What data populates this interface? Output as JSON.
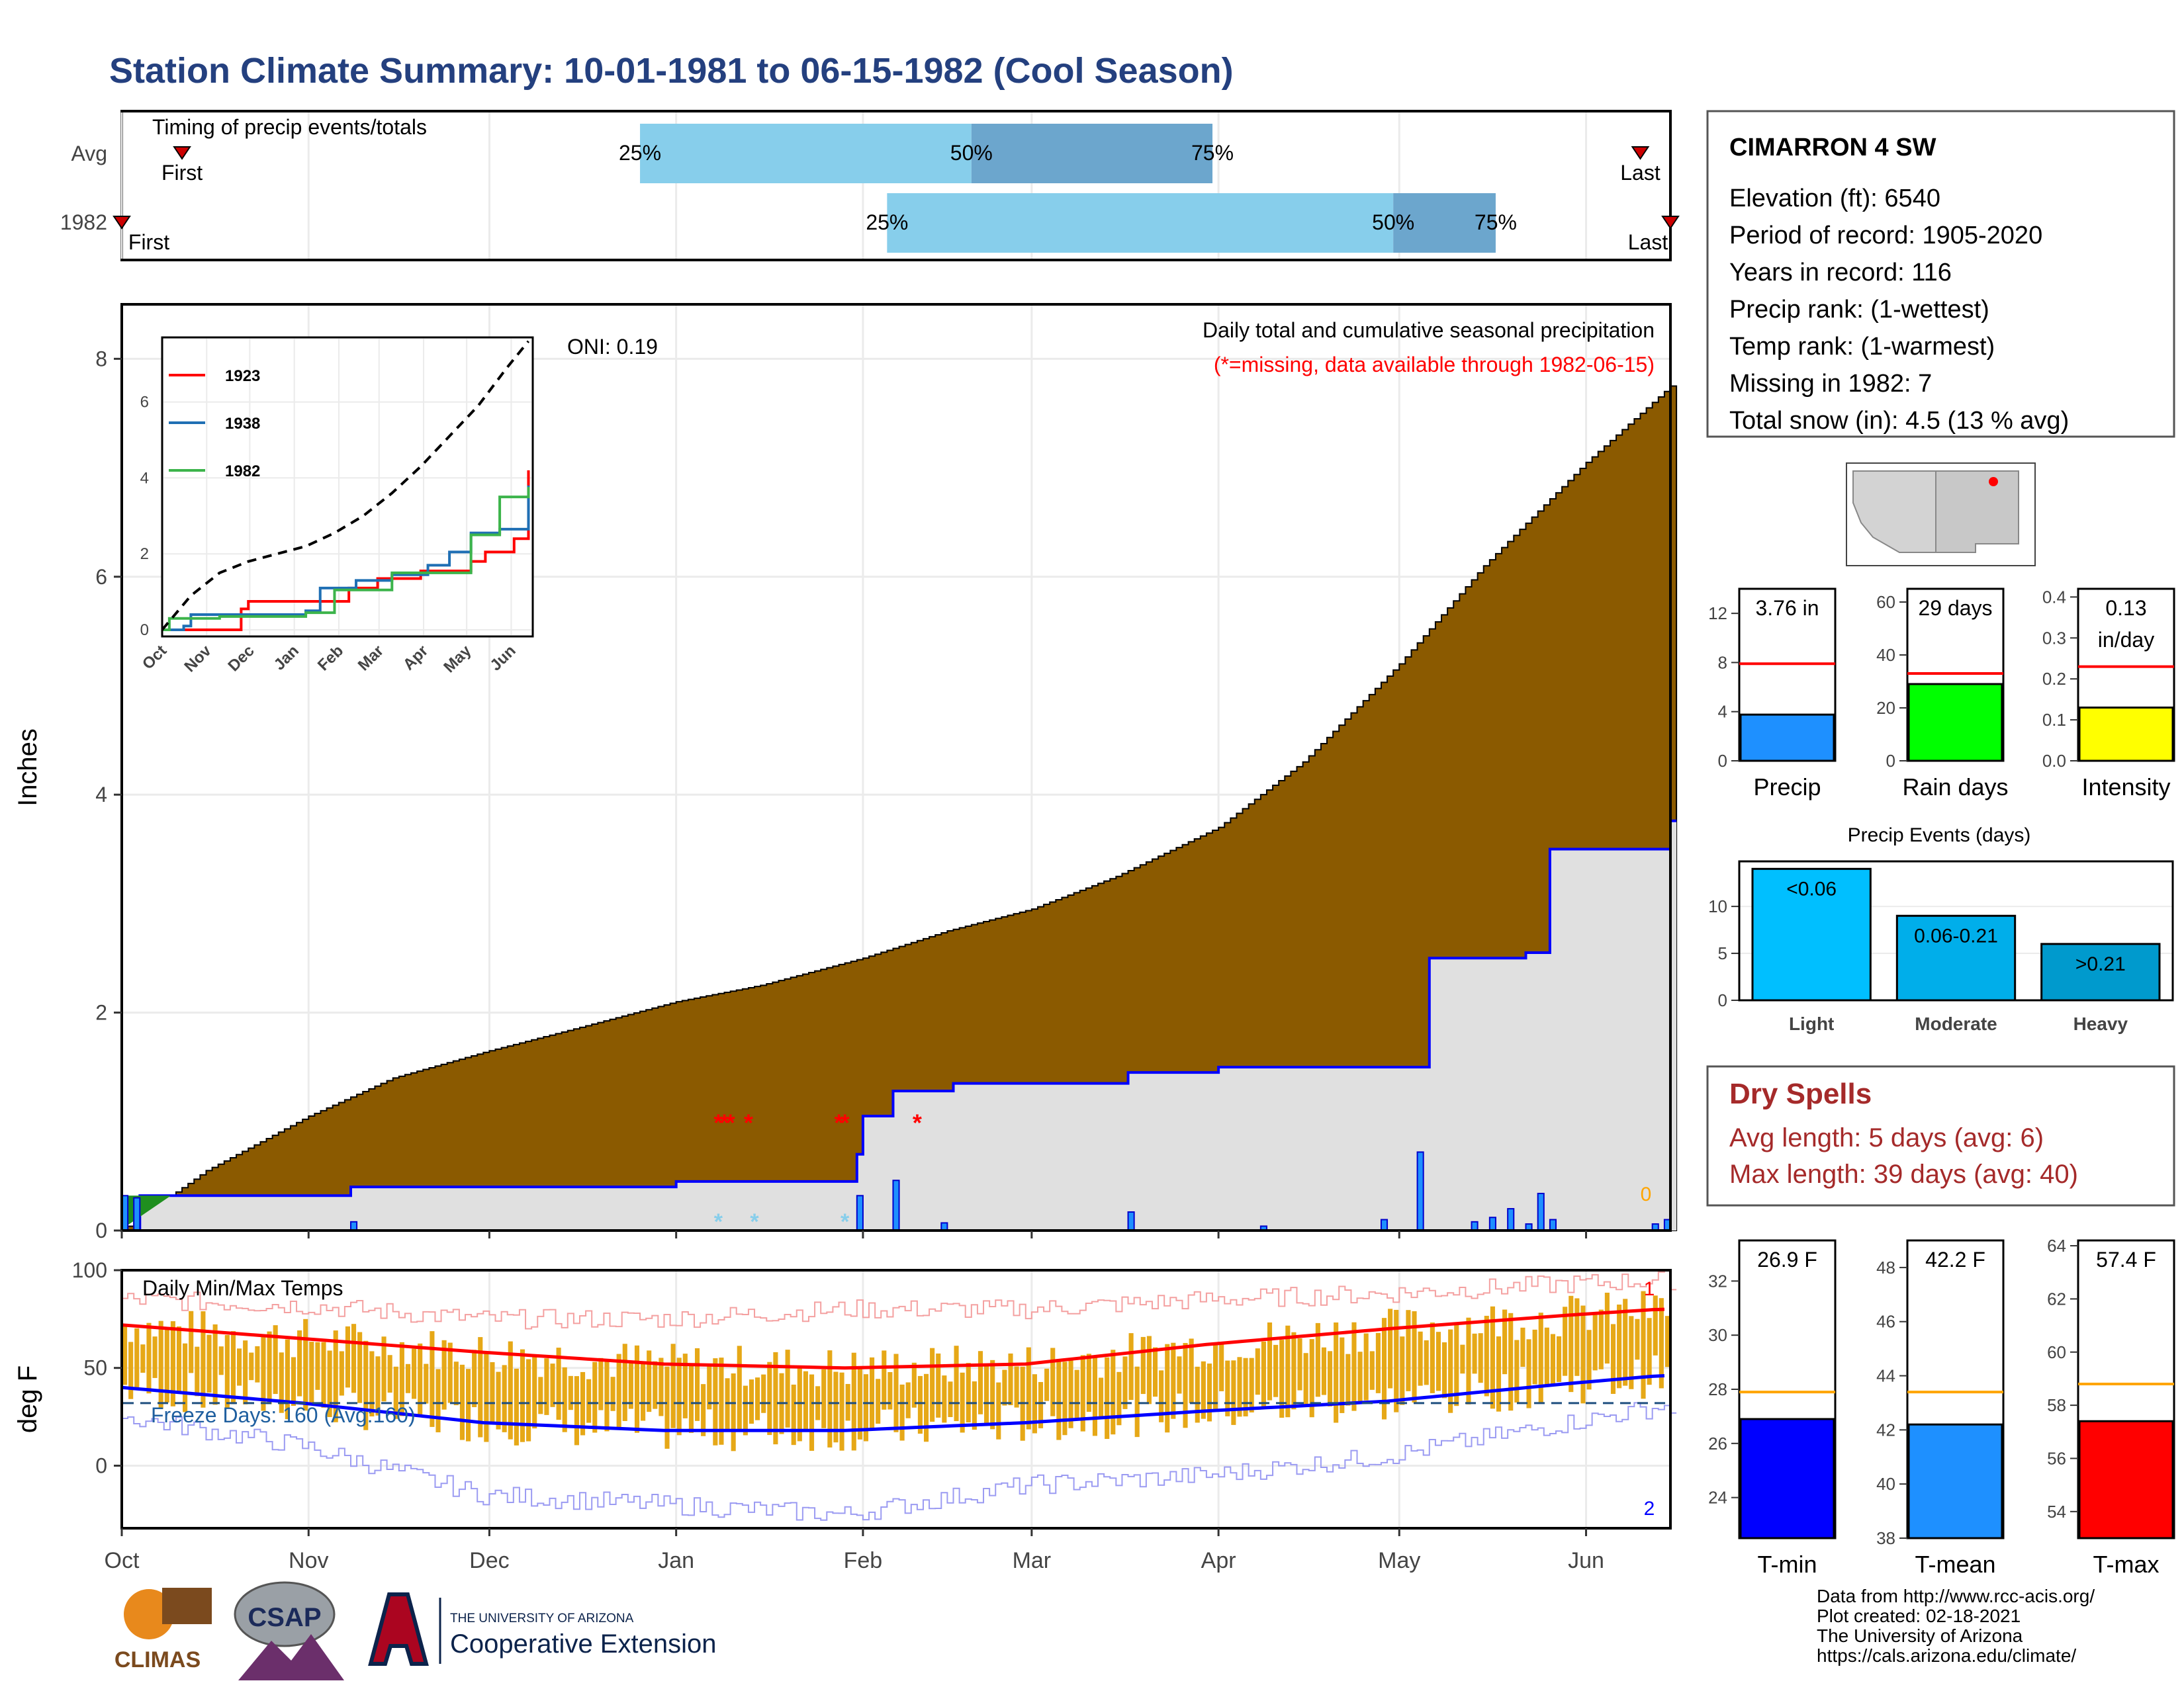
{
  "title": "Station Climate Summary: 10-01-1981 to 06-15-1982 (Cool Season)",
  "colors": {
    "title": "#24407f",
    "brown": "#8b5a00",
    "gray_fill": "#e0e0e0",
    "blue_line": "#0000ff",
    "timing_light": "#87ceeb",
    "timing_dark": "#6ca6cd",
    "red": "#ff0000",
    "orange": "#e6a817",
    "dry_red": "#a52a2a"
  },
  "timing": {
    "title": "Timing of precip events/totals",
    "rows": [
      {
        "label": "Avg",
        "first_label": "First",
        "last_label": "Last",
        "p25_label": "25%",
        "p50_label": "50%",
        "p75_label": "75%",
        "first_date": "1981-10-11",
        "p25_date": "1981-12-26",
        "p50_date": "1982-02-19",
        "p75_date": "1982-03-31",
        "last_date": "1982-06-10"
      },
      {
        "label": "1982",
        "first_label": "First",
        "last_label": "Last",
        "p25_label": "25%",
        "p50_label": "50%",
        "p75_label": "75%",
        "first_date": "1981-10-01",
        "p25_date": "1982-02-05",
        "p50_date": "1982-04-30",
        "p75_date": "1982-05-17",
        "last_date": "1982-06-15"
      }
    ]
  },
  "precip": {
    "ylabel": "Inches",
    "oni_label": "ONI: 0.19",
    "caption1": "Daily total and cumulative seasonal precipitation",
    "caption2": "(*=missing, data available through 1982-06-15)",
    "zero_label": "0",
    "y_ticks": [
      "0",
      "2",
      "4",
      "6",
      "8"
    ]
  },
  "chart_data": [
    {
      "type": "area",
      "name": "cumulative-precip",
      "x_range": [
        "1981-10-01",
        "1982-06-15"
      ],
      "ylim": [
        0,
        8.5
      ],
      "y_ticks": [
        0,
        2,
        4,
        6,
        8
      ],
      "x_ticks": [
        "Oct",
        "Nov",
        "Dec",
        "Jan",
        "Feb",
        "Mar",
        "Apr",
        "May",
        "Jun"
      ],
      "average_cumulative": {
        "x": [
          "1981-10-01",
          "1981-10-15",
          "1981-11-01",
          "1981-11-15",
          "1981-12-01",
          "1981-12-15",
          "1982-01-01",
          "1982-01-15",
          "1982-02-01",
          "1982-02-15",
          "1982-03-01",
          "1982-03-15",
          "1982-04-01",
          "1982-04-15",
          "1982-05-01",
          "1982-05-15",
          "1982-06-01",
          "1982-06-15"
        ],
        "y": [
          0.0,
          0.55,
          1.05,
          1.4,
          1.65,
          1.85,
          2.1,
          2.25,
          2.5,
          2.75,
          2.95,
          3.25,
          3.7,
          4.3,
          5.2,
          6.1,
          7.05,
          7.75
        ]
      },
      "observed_cumulative": {
        "x": [
          "1981-10-01",
          "1981-10-04",
          "1981-11-08",
          "1982-01-01",
          "1982-01-31",
          "1982-02-01",
          "1982-02-06",
          "1982-02-16",
          "1982-03-17",
          "1982-04-01",
          "1982-05-01",
          "1982-05-06",
          "1982-05-22",
          "1982-05-26",
          "1982-06-15"
        ],
        "y": [
          0.0,
          0.32,
          0.4,
          0.45,
          0.7,
          1.05,
          1.28,
          1.35,
          1.45,
          1.5,
          1.5,
          2.5,
          2.55,
          3.5,
          3.76
        ]
      },
      "daily_precip": {
        "x": [
          "1981-10-01",
          "1981-10-03",
          "1981-11-08",
          "1982-01-31",
          "1982-02-06",
          "1982-02-14",
          "1982-03-17",
          "1982-04-08",
          "1982-04-28",
          "1982-05-04",
          "1982-05-13",
          "1982-05-16",
          "1982-05-19",
          "1982-05-22",
          "1982-05-24",
          "1982-05-26",
          "1982-06-12",
          "1982-06-14"
        ],
        "y": [
          0.32,
          0.3,
          0.08,
          0.32,
          0.46,
          0.07,
          0.17,
          0.04,
          0.1,
          0.72,
          0.08,
          0.12,
          0.2,
          0.06,
          0.34,
          0.1,
          0.06,
          0.1
        ]
      },
      "missing_precip": [
        "1982-01-08",
        "1982-01-09",
        "1982-01-10",
        "1982-01-13",
        "1982-01-28",
        "1982-01-29",
        "1982-02-10"
      ],
      "missing_snow": [
        "1982-01-08",
        "1982-01-14",
        "1982-01-29"
      ]
    },
    {
      "type": "line",
      "name": "cumulative-inset",
      "x_ticks": [
        "Oct",
        "Nov",
        "Dec",
        "Jan",
        "Feb",
        "Mar",
        "Apr",
        "May",
        "Jun"
      ],
      "y_ticks": [
        0,
        2,
        4,
        6
      ],
      "ylim": [
        0,
        7.7
      ],
      "series": [
        {
          "name": "1923",
          "color": "#ff0000",
          "x": [
            0,
            20,
            55,
            60,
            100,
            130,
            150,
            180,
            215,
            225,
            245,
            255
          ],
          "y": [
            0,
            0,
            0.55,
            0.75,
            0.75,
            1.1,
            1.35,
            1.55,
            1.8,
            2.05,
            2.4,
            4.2
          ]
        },
        {
          "name": "1938",
          "color": "#1f6fb4",
          "x": [
            0,
            15,
            20,
            100,
            110,
            135,
            160,
            185,
            200,
            215,
            235,
            255
          ],
          "y": [
            0,
            0.1,
            0.4,
            0.5,
            1.1,
            1.3,
            1.45,
            1.7,
            2.05,
            2.55,
            2.65,
            3.8
          ]
        },
        {
          "name": "1982",
          "color": "#3cb44b",
          "x": [
            0,
            5,
            40,
            100,
            120,
            160,
            195,
            215,
            235,
            255
          ],
          "y": [
            0,
            0.3,
            0.35,
            0.45,
            1.05,
            1.5,
            1.5,
            2.5,
            3.5,
            3.76
          ]
        }
      ],
      "average": {
        "name": "avg",
        "x": [
          0,
          20,
          40,
          60,
          80,
          100,
          120,
          140,
          160,
          180,
          200,
          220,
          240,
          255
        ],
        "y": [
          0,
          0.9,
          1.5,
          1.8,
          2.0,
          2.2,
          2.55,
          3.0,
          3.6,
          4.3,
          5.1,
          5.9,
          6.9,
          7.6
        ]
      }
    },
    {
      "type": "bar",
      "name": "daily-temps",
      "ylabel": "deg F",
      "title": "Daily Min/Max Temps",
      "ylim": [
        -32,
        100
      ],
      "y_ticks": [
        0,
        50,
        100
      ],
      "freeze_line": 32,
      "freeze_label": "Freeze Days: 160 (Avg:160)",
      "record_high_count": "1",
      "record_low_count": "2",
      "avg_max": {
        "x": [
          0,
          30,
          60,
          90,
          120,
          150,
          180,
          210,
          240,
          255
        ],
        "y": [
          72,
          65,
          58,
          52,
          50,
          52,
          62,
          70,
          77,
          80
        ]
      },
      "avg_min": {
        "x": [
          0,
          30,
          60,
          90,
          120,
          150,
          180,
          210,
          240,
          255
        ],
        "y": [
          40,
          32,
          22,
          18,
          18,
          22,
          28,
          33,
          42,
          46
        ]
      },
      "record_max": {
        "x": [
          0,
          30,
          60,
          90,
          120,
          150,
          180,
          210,
          240,
          255
        ],
        "y": [
          85,
          82,
          75,
          75,
          80,
          80,
          85,
          88,
          93,
          95
        ]
      },
      "record_min": {
        "x": [
          0,
          30,
          60,
          90,
          120,
          150,
          180,
          210,
          240,
          255
        ],
        "y": [
          25,
          10,
          -15,
          -20,
          -25,
          -10,
          -5,
          5,
          22,
          30
        ]
      }
    }
  ],
  "info": {
    "station": "CIMARRON 4 SW",
    "lines": [
      "Elevation (ft): 6540",
      "Period of record: 1905-2020",
      "Years in record: 116",
      "Precip rank:  (1-wettest)",
      "Temp rank:  (1-warmest)",
      "Missing in 1982: 7",
      "Total snow (in): 4.5 (13 % avg)"
    ]
  },
  "mini_charts": {
    "precip": {
      "label": "Precip",
      "value_label": "3.76 in",
      "value": 3.76,
      "avg": 7.9,
      "ylim": [
        0,
        14
      ],
      "ticks": [
        "0",
        "4",
        "8",
        "12"
      ],
      "color": "#1e90ff"
    },
    "raindays": {
      "label": "Rain days",
      "value_label": "29 days",
      "value": 29,
      "avg": 33,
      "ylim": [
        0,
        65
      ],
      "ticks": [
        "0",
        "20",
        "40",
        "60"
      ],
      "color": "#00ff00"
    },
    "intensity": {
      "label": "Intensity",
      "value_label": "0.13",
      "value_label2": "in/day",
      "value": 0.13,
      "avg": 0.23,
      "ylim": [
        0,
        0.42
      ],
      "ticks": [
        "0.0",
        "0.1",
        "0.2",
        "0.3",
        "0.4"
      ],
      "color": "#ffff00"
    }
  },
  "precip_events": {
    "title": "Precip Events (days)",
    "ticks": [
      "0",
      "5",
      "10"
    ],
    "bars": [
      {
        "label": "Light",
        "value_label": "<0.06",
        "value": 14,
        "color": "#00bfff"
      },
      {
        "label": "Moderate",
        "value_label": "0.06-0.21",
        "value": 9,
        "color": "#00aeea"
      },
      {
        "label": "Heavy",
        "value_label": ">0.21",
        "value": 6,
        "color": "#009acd"
      }
    ]
  },
  "dry_spells": {
    "title": "Dry Spells",
    "avg_line": "Avg length: 5 days (avg: 6)",
    "max_line": "Max length: 39 days (avg: 40)"
  },
  "temp_charts": {
    "tmin": {
      "label": "T-min",
      "value_label": "26.9 F",
      "value": 26.9,
      "avg": 27.9,
      "ylim": [
        22.5,
        33.5
      ],
      "ticks": [
        "24",
        "26",
        "28",
        "30",
        "32"
      ],
      "color": "#0000ff"
    },
    "tmean": {
      "label": "T-mean",
      "value_label": "42.2 F",
      "value": 42.2,
      "avg": 43.4,
      "ylim": [
        38,
        49
      ],
      "ticks": [
        "38",
        "40",
        "42",
        "44",
        "46",
        "48"
      ],
      "color": "#1e90ff"
    },
    "tmax": {
      "label": "T-max",
      "value_label": "57.4 F",
      "value": 57.4,
      "avg": 58.8,
      "ylim": [
        53,
        64.2
      ],
      "ticks": [
        "54",
        "56",
        "58",
        "60",
        "62",
        "64"
      ],
      "color": "#ff0000"
    }
  },
  "footer": {
    "lines": [
      "Data from http://www.rcc-acis.org/",
      "Plot created: 02-18-2021",
      "The University of Arizona",
      "https://cals.arizona.edu/climate/"
    ],
    "climas": "CLIMAS",
    "csap": "CSAP",
    "ua_small": "THE UNIVERSITY OF ARIZONA",
    "ua_big": "Cooperative Extension"
  }
}
